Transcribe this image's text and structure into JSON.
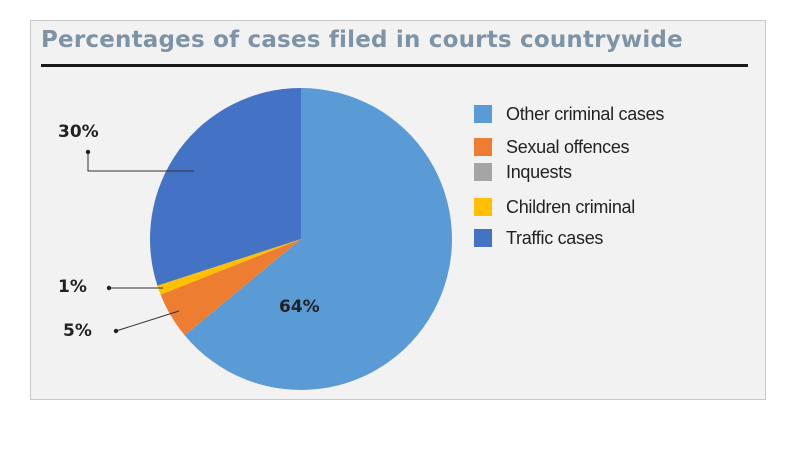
{
  "chart_data": {
    "type": "pie",
    "title": "Percentages of cases filed in courts countrywide",
    "categories": [
      "Other criminal cases",
      "Sexual offences",
      "Inquests",
      "Children criminal",
      "Traffic cases"
    ],
    "values": [
      64,
      5,
      0,
      1,
      30
    ],
    "colors": [
      "#5b9bd5",
      "#ed7d31",
      "#a5a5a5",
      "#ffc000",
      "#4472c4"
    ],
    "slice_labels": [
      "64%",
      "5%",
      "",
      "1%",
      "30%"
    ],
    "legend_position": "right"
  }
}
